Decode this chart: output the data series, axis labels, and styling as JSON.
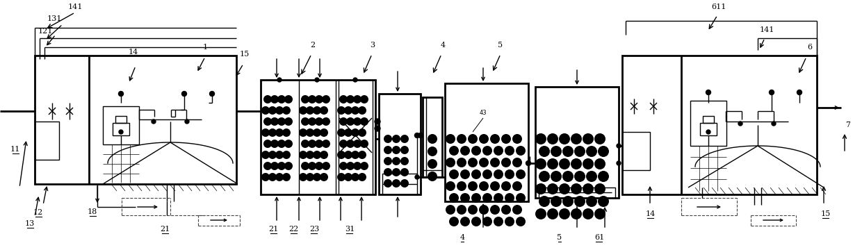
{
  "bg_color": "#ffffff",
  "line_color": "#000000",
  "lw": 1.0,
  "lw2": 2.0,
  "lw3": 1.5
}
